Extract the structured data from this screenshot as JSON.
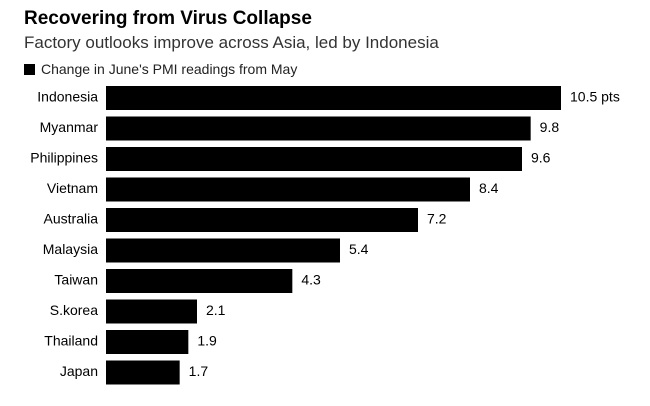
{
  "chart_data": {
    "type": "bar",
    "orientation": "horizontal",
    "title": "Recovering from Virus Collapse",
    "subtitle": "Factory outlooks improve across Asia, led by Indonesia",
    "legend": [
      "Change in June's PMI readings from May"
    ],
    "categories": [
      "Indonesia",
      "Myanmar",
      "Philippines",
      "Vietnam",
      "Australia",
      "Malaysia",
      "Taiwan",
      "S.korea",
      "Thailand",
      "Japan"
    ],
    "values": [
      10.5,
      9.8,
      9.6,
      8.4,
      7.2,
      5.4,
      4.3,
      2.1,
      1.9,
      1.7
    ],
    "value_labels": [
      "10.5 pts",
      "9.8",
      "9.6",
      "8.4",
      "7.2",
      "5.4",
      "4.3",
      "2.1",
      "1.9",
      "1.7"
    ],
    "xlim": [
      0,
      10.5
    ],
    "grid": false,
    "colors": {
      "bar": "#000000"
    }
  }
}
